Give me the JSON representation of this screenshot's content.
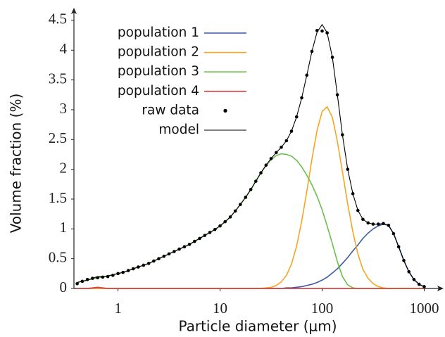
{
  "chart_data": {
    "type": "line",
    "xlabel": "Particle diameter (μm)",
    "ylabel": "Volume fraction (%)",
    "xscale": "log",
    "xlim": [
      0.37,
      1500
    ],
    "ylim": [
      0,
      4.7
    ],
    "xticks": [
      1,
      10,
      100,
      1000
    ],
    "yticks": [
      0,
      0.5,
      1,
      1.5,
      2,
      2.5,
      3,
      3.5,
      4,
      4.5
    ],
    "legend": "upper left",
    "x": [
      0.398,
      0.447,
      0.501,
      0.562,
      0.631,
      0.708,
      0.794,
      0.891,
      1,
      1.12,
      1.26,
      1.41,
      1.58,
      1.78,
      2.0,
      2.24,
      2.51,
      2.82,
      3.16,
      3.55,
      3.98,
      4.47,
      5.01,
      5.62,
      6.31,
      7.08,
      7.94,
      8.91,
      10,
      11.2,
      12.6,
      14.1,
      15.8,
      17.8,
      20,
      22.4,
      25.1,
      28.2,
      31.6,
      35.5,
      39.8,
      44.7,
      50.1,
      56.2,
      63.1,
      70.8,
      79.4,
      89.1,
      100,
      112,
      126,
      141,
      158,
      178,
      200,
      224,
      251,
      282,
      316,
      355,
      398,
      447,
      501,
      562,
      631,
      708,
      794,
      891,
      1000
    ],
    "series": [
      {
        "name": "population 1",
        "color": "#3a5ba8",
        "mode": "line",
        "values": [
          0,
          0,
          0,
          0,
          0,
          0,
          0,
          0,
          0,
          0,
          0,
          0,
          0,
          0,
          0,
          0,
          0,
          0,
          0,
          0,
          0,
          0,
          0,
          0,
          0,
          0,
          0,
          0,
          0,
          0,
          0,
          0,
          0,
          0,
          0,
          0,
          0,
          0,
          0,
          0,
          0,
          0.01,
          0.01,
          0.02,
          0.03,
          0.05,
          0.07,
          0.1,
          0.14,
          0.19,
          0.26,
          0.33,
          0.42,
          0.52,
          0.63,
          0.73,
          0.84,
          0.93,
          1.0,
          1.05,
          1.08,
          1.06,
          0.92,
          0.7,
          0.47,
          0.28,
          0.15,
          0.07,
          0.03
        ]
      },
      {
        "name": "population 2",
        "color": "#f5a623",
        "mode": "line",
        "values": [
          0,
          0,
          0,
          0,
          0,
          0,
          0,
          0,
          0,
          0,
          0,
          0,
          0,
          0,
          0,
          0,
          0,
          0,
          0,
          0,
          0,
          0,
          0,
          0,
          0,
          0,
          0,
          0,
          0,
          0,
          0,
          0,
          0,
          0,
          0,
          0,
          0,
          0.01,
          0.02,
          0.05,
          0.11,
          0.22,
          0.41,
          0.71,
          1.13,
          1.63,
          2.17,
          2.65,
          2.97,
          3.05,
          2.87,
          2.47,
          1.96,
          1.42,
          0.95,
          0.58,
          0.32,
          0.17,
          0.08,
          0.03,
          0.01,
          0,
          0,
          0,
          0,
          0,
          0,
          0,
          0
        ]
      },
      {
        "name": "population 3",
        "color": "#6abf4b",
        "mode": "line",
        "values": [
          0.1,
          0.12,
          0.14,
          0.16,
          0.18,
          0.19,
          0.21,
          0.23,
          0.25,
          0.27,
          0.3,
          0.33,
          0.36,
          0.39,
          0.42,
          0.46,
          0.5,
          0.54,
          0.58,
          0.62,
          0.66,
          0.7,
          0.74,
          0.79,
          0.84,
          0.89,
          0.94,
          0.99,
          1.05,
          1.12,
          1.2,
          1.3,
          1.41,
          1.53,
          1.66,
          1.8,
          1.94,
          2.06,
          2.16,
          2.23,
          2.26,
          2.25,
          2.22,
          2.15,
          2.04,
          1.9,
          1.74,
          1.55,
          1.32,
          1.05,
          0.75,
          0.45,
          0.2,
          0.06,
          0.01,
          0,
          0,
          0,
          0,
          0,
          0,
          0,
          0,
          0,
          0,
          0,
          0,
          0,
          0
        ]
      },
      {
        "name": "population 4",
        "color": "#e03a3a",
        "mode": "line",
        "values": [
          0,
          0,
          0,
          0.01,
          0.02,
          0.01,
          0,
          0,
          0,
          0,
          0,
          0,
          0,
          0,
          0,
          0,
          0,
          0,
          0,
          0,
          0,
          0,
          0,
          0,
          0,
          0,
          0,
          0,
          0,
          0,
          0,
          0,
          0,
          0,
          0,
          0,
          0,
          0,
          0,
          0,
          0,
          0,
          0,
          0,
          0,
          0,
          0,
          0,
          0,
          0,
          0,
          0,
          0,
          0,
          0,
          0,
          0,
          0,
          0,
          0,
          0,
          0,
          0,
          0,
          0,
          0,
          0,
          0,
          0
        ]
      },
      {
        "name": "raw data",
        "color": "#000000",
        "mode": "markers",
        "values": [
          0.08,
          0.12,
          0.15,
          0.17,
          0.18,
          0.19,
          0.2,
          0.22,
          0.25,
          0.27,
          0.3,
          0.33,
          0.36,
          0.39,
          0.42,
          0.46,
          0.5,
          0.54,
          0.58,
          0.62,
          0.66,
          0.7,
          0.74,
          0.79,
          0.84,
          0.89,
          0.94,
          0.99,
          1.05,
          1.12,
          1.2,
          1.3,
          1.41,
          1.53,
          1.66,
          1.8,
          1.94,
          2.07,
          2.18,
          2.28,
          2.37,
          2.48,
          2.64,
          2.88,
          3.2,
          3.58,
          3.98,
          4.33,
          4.32,
          4.29,
          3.88,
          3.25,
          2.58,
          2.0,
          1.59,
          1.31,
          1.16,
          1.1,
          1.08,
          1.08,
          1.09,
          1.06,
          0.92,
          0.7,
          0.47,
          0.28,
          0.15,
          0.07,
          0.03
        ]
      },
      {
        "name": "model",
        "color": "#000000",
        "mode": "line",
        "values": [
          0.1,
          0.12,
          0.14,
          0.17,
          0.2,
          0.2,
          0.21,
          0.23,
          0.25,
          0.27,
          0.3,
          0.33,
          0.36,
          0.39,
          0.42,
          0.46,
          0.5,
          0.54,
          0.58,
          0.62,
          0.66,
          0.7,
          0.74,
          0.79,
          0.84,
          0.89,
          0.94,
          0.99,
          1.05,
          1.12,
          1.2,
          1.3,
          1.41,
          1.53,
          1.66,
          1.8,
          1.94,
          2.07,
          2.18,
          2.28,
          2.37,
          2.48,
          2.64,
          2.88,
          3.2,
          3.58,
          3.98,
          4.3,
          4.43,
          4.29,
          3.88,
          3.25,
          2.58,
          2.0,
          1.59,
          1.31,
          1.16,
          1.1,
          1.08,
          1.08,
          1.09,
          1.06,
          0.92,
          0.7,
          0.47,
          0.28,
          0.15,
          0.07,
          0.03
        ]
      }
    ]
  }
}
